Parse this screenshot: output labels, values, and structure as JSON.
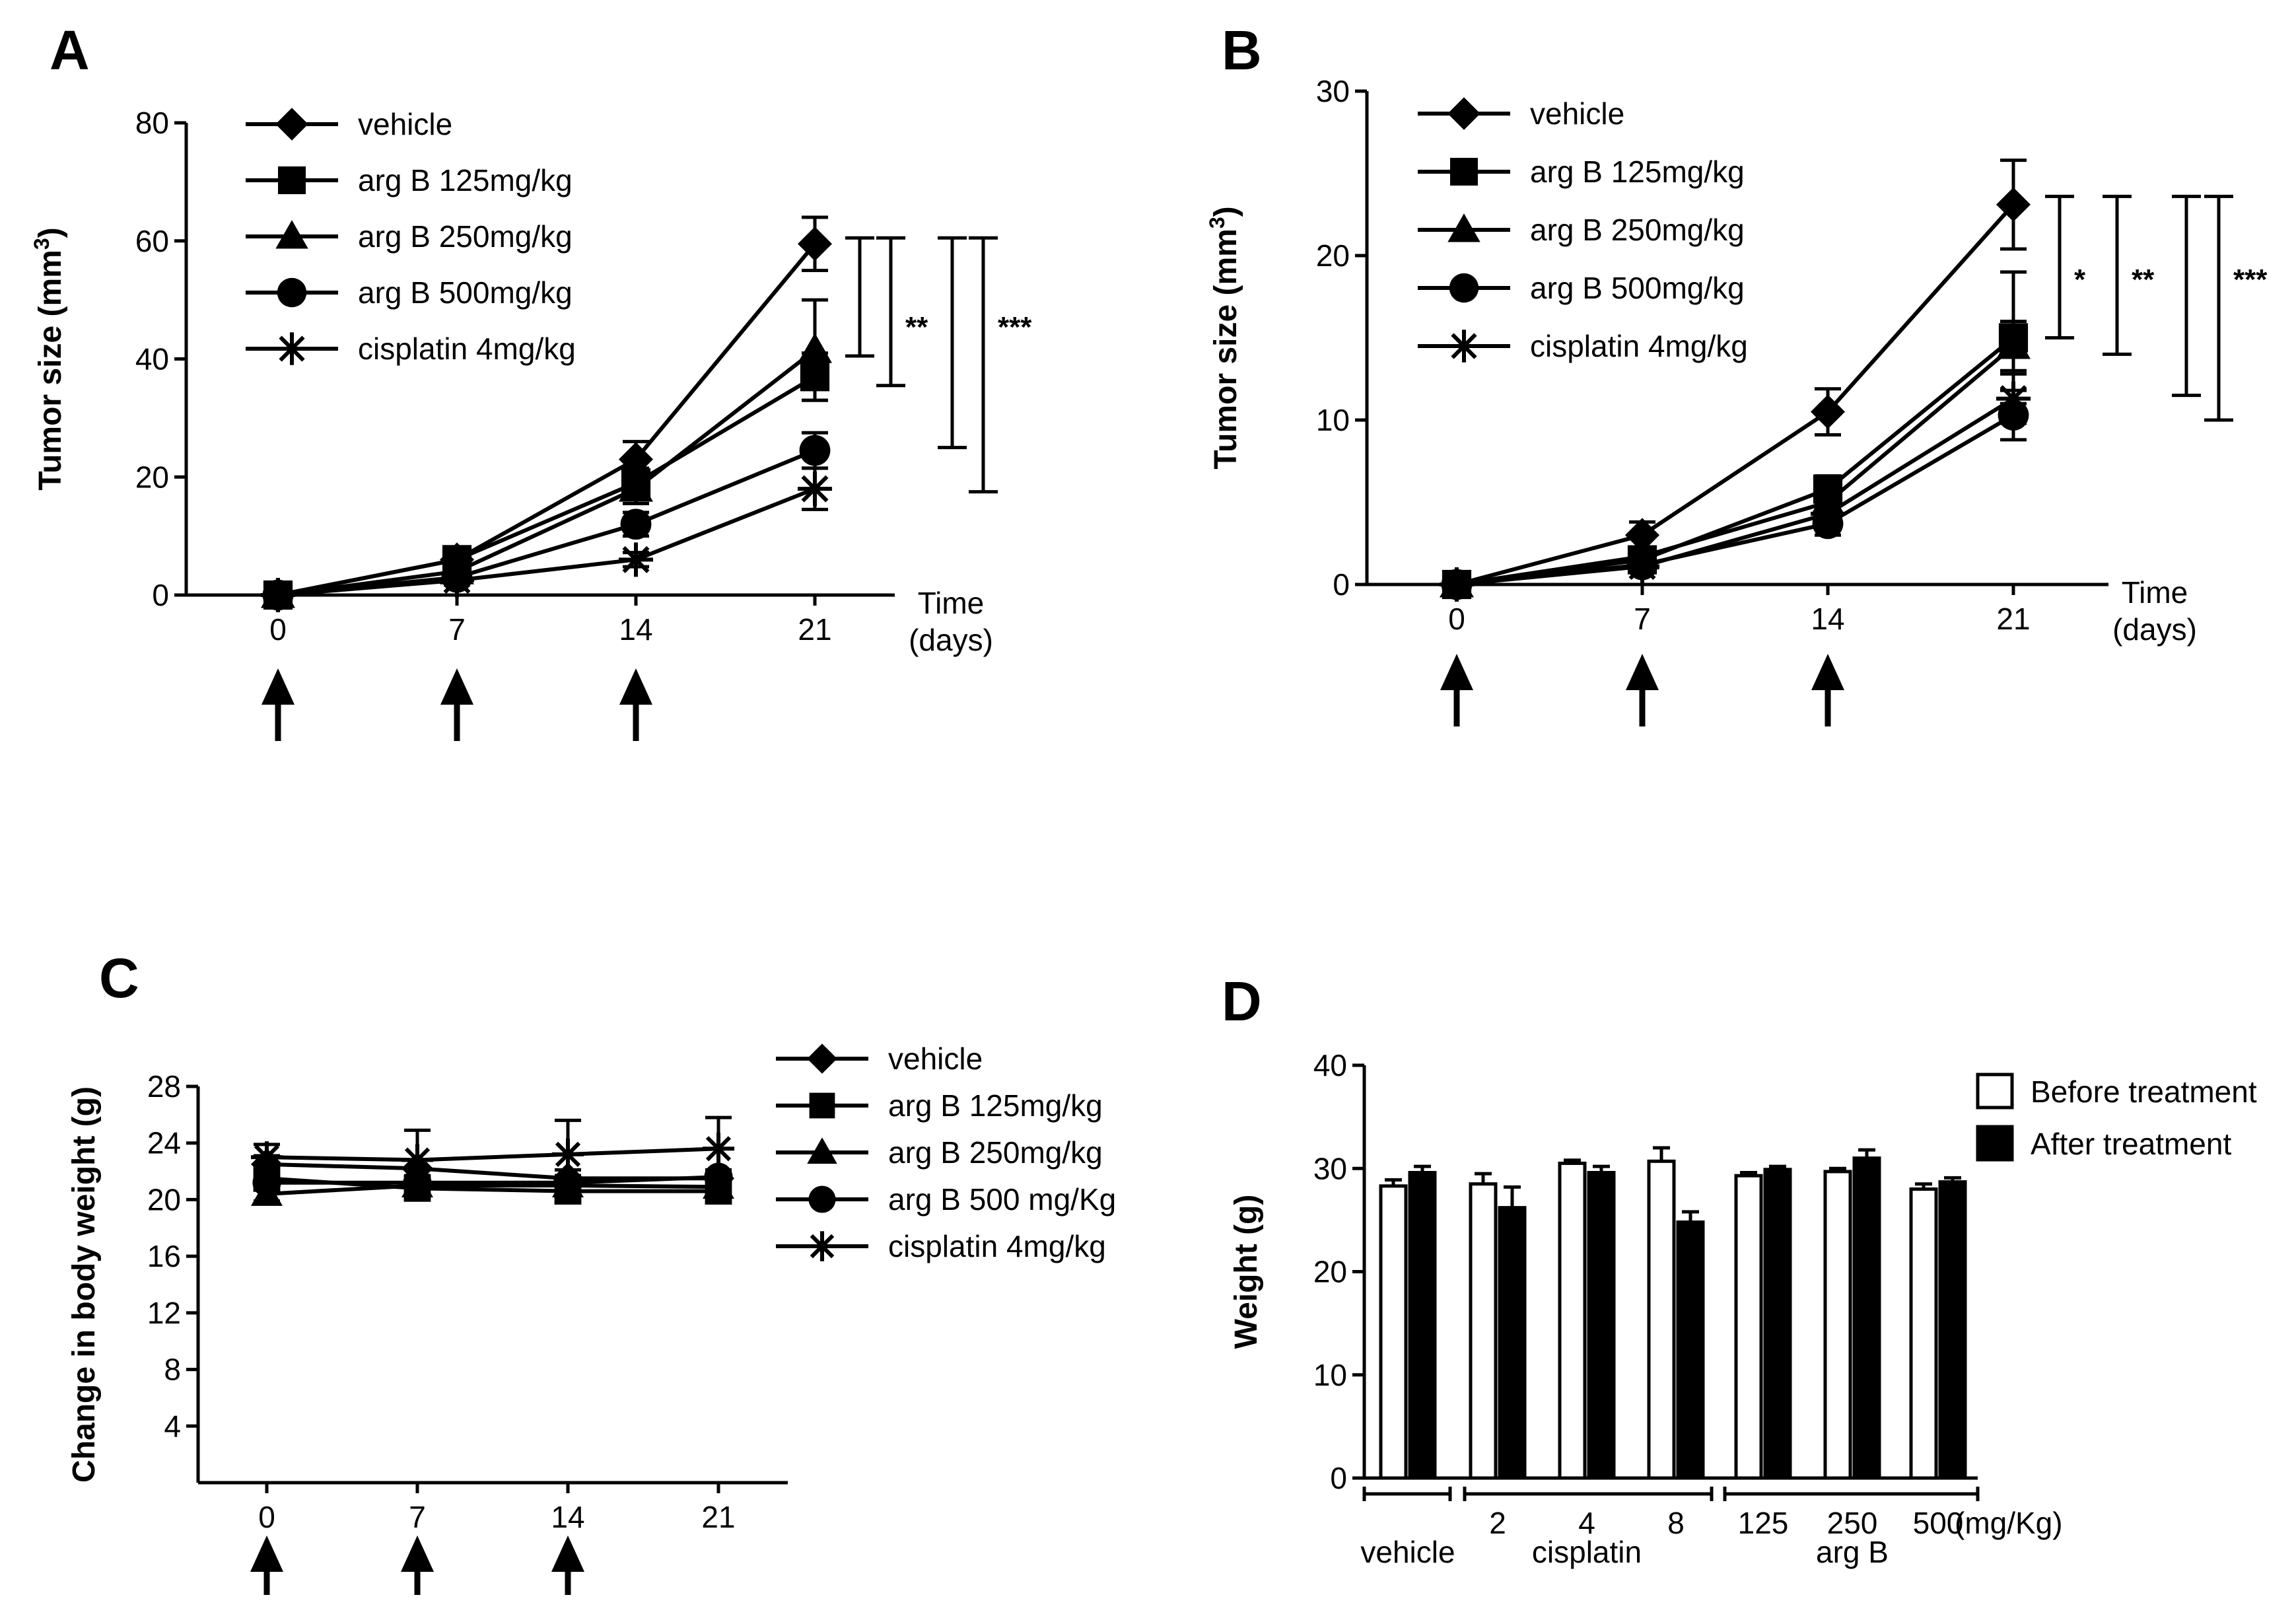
{
  "chart_data": [
    {
      "panel": "A",
      "type": "line",
      "ylabel": "Tumor size (mm",
      "ylabel_sup": "3",
      "ylabel_close": ")",
      "xlabel_line1": "Time",
      "xlabel_line2": "(days)",
      "x": [
        0,
        7,
        14,
        21
      ],
      "x_ticks": [
        "0",
        "7",
        "14",
        "21"
      ],
      "ylim": [
        0,
        80
      ],
      "y_ticks": [
        "0",
        "20",
        "40",
        "60",
        "80"
      ],
      "series": [
        {
          "name": "vehicle",
          "marker": "diamond",
          "values": [
            0,
            6,
            23,
            59.5
          ],
          "errors": [
            0,
            1,
            3,
            4.5
          ]
        },
        {
          "name": "arg B 125mg/kg",
          "marker": "square",
          "values": [
            0,
            6,
            19,
            37
          ],
          "errors": [
            0,
            1,
            2.5,
            4
          ]
        },
        {
          "name": "arg B 250mg/kg",
          "marker": "triangle",
          "values": [
            0,
            4,
            18,
            41.5
          ],
          "errors": [
            0,
            1,
            2.5,
            8.5
          ]
        },
        {
          "name": "arg B 500mg/kg",
          "marker": "circle",
          "values": [
            0,
            3,
            12,
            24.5
          ],
          "errors": [
            0,
            0.8,
            2,
            3
          ]
        },
        {
          "name": "cisplatin 4mg/kg",
          "marker": "star",
          "values": [
            0,
            2.5,
            6,
            18
          ],
          "errors": [
            0,
            0.8,
            1.2,
            3.5
          ]
        }
      ],
      "significance": [
        {
          "label": "",
          "y1": 40.5,
          "y2": 60.5
        },
        {
          "label": "**",
          "y1": 35.5,
          "y2": 60.5
        },
        {
          "label": "",
          "y1": 25,
          "y2": 60.5
        },
        {
          "label": "***",
          "y1": 17.5,
          "y2": 60.5
        }
      ],
      "treatment_arrows_days": [
        0,
        7,
        14
      ]
    },
    {
      "panel": "B",
      "type": "line",
      "ylabel": "Tumor size (mm",
      "ylabel_sup": "3",
      "ylabel_close": ")",
      "xlabel_line1": "Time",
      "xlabel_line2": "(days)",
      "x": [
        0,
        7,
        14,
        21
      ],
      "x_ticks": [
        "0",
        "7",
        "14",
        "21"
      ],
      "ylim": [
        0,
        30
      ],
      "y_ticks": [
        "0",
        "10",
        "20",
        "30"
      ],
      "series": [
        {
          "name": "vehicle",
          "marker": "diamond",
          "values": [
            0,
            3,
            10.5,
            23.1
          ],
          "errors": [
            0,
            0.8,
            1.4,
            2.7
          ]
        },
        {
          "name": "arg B 125mg/kg",
          "marker": "square",
          "values": [
            0,
            1.5,
            5.8,
            15
          ],
          "errors": [
            0,
            0.4,
            0.8,
            4
          ]
        },
        {
          "name": "arg B 250mg/kg",
          "marker": "triangle",
          "values": [
            0,
            1.7,
            5,
            14.5
          ],
          "errors": [
            0,
            0.4,
            0.8,
            1.5
          ]
        },
        {
          "name": "arg B 500mg/kg",
          "marker": "circle",
          "values": [
            0,
            1.2,
            3.7,
            10.3
          ],
          "errors": [
            0,
            0.3,
            0.7,
            1.5
          ]
        },
        {
          "name": "cisplatin 4mg/kg",
          "marker": "star",
          "values": [
            0,
            1.1,
            4.3,
            11.3
          ],
          "errors": [
            0,
            0.3,
            0.8,
            1.5
          ]
        }
      ],
      "significance": [
        {
          "label": "*",
          "y1": 15,
          "y2": 23.6
        },
        {
          "label": "**",
          "y1": 14,
          "y2": 23.6
        },
        {
          "label": "",
          "y1": 11.5,
          "y2": 23.6
        },
        {
          "label": "***",
          "y1": 10,
          "y2": 23.6
        }
      ],
      "treatment_arrows_days": [
        0,
        7,
        14
      ]
    },
    {
      "panel": "C",
      "type": "line",
      "ylabel": "Change in body weight (g)",
      "x": [
        0,
        7,
        14,
        21
      ],
      "x_ticks": [
        "0",
        "7",
        "14",
        "21"
      ],
      "ylim": [
        0,
        28
      ],
      "y_ticks": [
        "4",
        "8",
        "12",
        "16",
        "20",
        "24",
        "28"
      ],
      "series": [
        {
          "name": "vehicle",
          "marker": "diamond",
          "values": [
            22.5,
            22.2,
            21.5,
            21.5
          ],
          "errors": [
            0.6,
            0.6,
            0.6,
            0.6
          ]
        },
        {
          "name": "arg B 125mg/kg",
          "marker": "square",
          "values": [
            21.5,
            20.8,
            20.6,
            20.6
          ],
          "errors": [
            0.5,
            0.5,
            0.5,
            0.5
          ]
        },
        {
          "name": "arg B 250mg/kg",
          "marker": "triangle",
          "values": [
            20.4,
            21,
            21,
            20.9
          ],
          "errors": [
            0.5,
            0.5,
            0.5,
            0.5
          ]
        },
        {
          "name": "arg B 500 mg/Kg",
          "marker": "circle",
          "values": [
            21.2,
            21.2,
            21.2,
            21.6
          ],
          "errors": [
            0.5,
            0.5,
            0.5,
            0.5
          ]
        },
        {
          "name": "cisplatin 4mg/kg",
          "marker": "star",
          "values": [
            23,
            22.8,
            23.2,
            23.6
          ],
          "errors": [
            0.9,
            2.1,
            2.4,
            2.2
          ]
        }
      ],
      "treatment_arrows_days": [
        0,
        7,
        14
      ]
    },
    {
      "panel": "D",
      "type": "bar",
      "ylabel": "Weight (g)",
      "ylim": [
        0,
        40
      ],
      "y_ticks": [
        "0",
        "10",
        "20",
        "30",
        "40"
      ],
      "categories": [
        "vehicle",
        "2",
        "4",
        "8",
        "125",
        "250",
        "500"
      ],
      "unit_label": "(mg/Kg)",
      "groups": [
        {
          "label": "vehicle",
          "span": [
            0,
            0
          ]
        },
        {
          "label": "cisplatin",
          "span": [
            1,
            3
          ]
        },
        {
          "label": "arg B",
          "span": [
            4,
            6
          ]
        }
      ],
      "series": [
        {
          "name": "Before treatment",
          "fill": "#ffffff",
          "values": [
            28.3,
            28.5,
            30.5,
            30.7,
            29.3,
            29.7,
            28
          ],
          "errors": [
            0.6,
            1,
            0.3,
            1.3,
            0.3,
            0.3,
            0.5
          ]
        },
        {
          "name": "After treatment",
          "fill": "#000000",
          "values": [
            29.6,
            26.2,
            29.6,
            24.8,
            29.9,
            31,
            28.7
          ],
          "errors": [
            0.6,
            2,
            0.6,
            1,
            0.3,
            0.8,
            0.4
          ]
        }
      ]
    }
  ]
}
